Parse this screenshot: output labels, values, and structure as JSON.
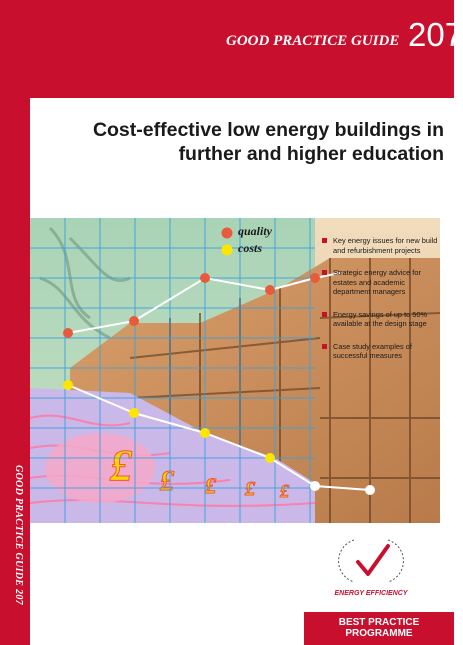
{
  "spine": {
    "text": "GOOD PRACTICE GUIDE 207"
  },
  "header": {
    "series": "GOOD PRACTICE GUIDE",
    "number": "207"
  },
  "title": {
    "line1": "Cost-effective low energy buildings in",
    "line2": "further and higher education"
  },
  "hero": {
    "legend": {
      "quality_label": "quality",
      "costs_label": "costs"
    },
    "colors": {
      "quality": "#e85a3c",
      "costs": "#ffe600",
      "grid": "#3aa0e0"
    },
    "bullets": [
      {
        "text": "Key energy issues for new build and refurbishment projects"
      },
      {
        "text": "Strategic energy advice for estates and academic department managers"
      },
      {
        "text": "Energy savings of up to 50% available at the design stage"
      },
      {
        "text": "Case study examples of successful measures"
      }
    ]
  },
  "branding": {
    "badge_text": "ENERGY EFFICIENCY",
    "programme_line1": "BEST PRACTICE",
    "programme_line2": "PROGRAMME",
    "colors": {
      "brand": "#c8102e"
    }
  }
}
